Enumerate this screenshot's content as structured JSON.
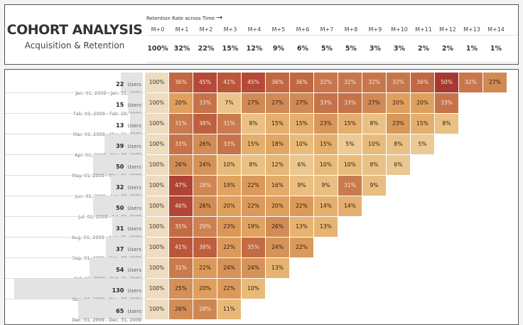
{
  "header": {
    "title": "COHORT ANALYSIS",
    "subtitle": "Acquisition & Retention",
    "caption": "Retention Rate across Time",
    "arrow": "→"
  },
  "chart_data": {
    "type": "heatmap",
    "columns": [
      "M+0",
      "M+1",
      "M+2",
      "M+3",
      "M+4",
      "M+5",
      "M+6",
      "M+7",
      "M+8",
      "M+9",
      "M+10",
      "M+11",
      "M+12",
      "M+13",
      "M+14"
    ],
    "overall": [
      "100%",
      "32%",
      "22%",
      "15%",
      "12%",
      "9%",
      "6%",
      "5%",
      "5%",
      "3%",
      "3%",
      "2%",
      "2%",
      "1%",
      "1%"
    ],
    "users_unit": "Users",
    "cohorts": [
      {
        "users": "22",
        "range": "Jan. 01, 2009 - Jan. 31, 2009",
        "values": [
          100,
          36,
          45,
          41,
          45,
          36,
          36,
          32,
          32,
          32,
          32,
          36,
          50,
          32,
          27
        ]
      },
      {
        "users": "15",
        "range": "Feb. 01, 2009 - Feb. 28, 2009",
        "values": [
          100,
          20,
          33,
          7,
          27,
          27,
          27,
          33,
          33,
          27,
          20,
          20,
          33
        ]
      },
      {
        "users": "13",
        "range": "Mar. 01, 2009 - Mar. 31, 2009",
        "values": [
          100,
          31,
          38,
          31,
          8,
          15,
          15,
          23,
          15,
          8,
          23,
          15,
          8
        ]
      },
      {
        "users": "39",
        "range": "Apr. 01, 2009 - Apr. 30, 2009",
        "values": [
          100,
          33,
          26,
          33,
          15,
          18,
          10,
          15,
          5,
          10,
          8,
          5
        ]
      },
      {
        "users": "50",
        "range": "May. 01, 2009 - May. 31, 2009",
        "values": [
          100,
          26,
          24,
          10,
          8,
          12,
          6,
          10,
          10,
          8,
          6
        ]
      },
      {
        "users": "32",
        "range": "Jun. 01, 2009 - Jun. 30, 2009",
        "values": [
          100,
          47,
          28,
          19,
          22,
          16,
          9,
          9,
          31,
          9
        ]
      },
      {
        "users": "50",
        "range": "Jul. 01, 2009 - Jul. 31, 2009",
        "values": [
          100,
          46,
          26,
          20,
          22,
          20,
          22,
          14,
          14
        ]
      },
      {
        "users": "31",
        "range": "Aug. 01, 2009 - Aug. 31, 2009",
        "values": [
          100,
          35,
          29,
          23,
          19,
          26,
          13,
          13
        ]
      },
      {
        "users": "37",
        "range": "Sep. 01, 2009 - Sep. 30, 2009",
        "values": [
          100,
          41,
          38,
          22,
          35,
          24,
          22
        ]
      },
      {
        "users": "54",
        "range": "Oct. 01, 2009 - Oct. 31, 2009",
        "values": [
          100,
          31,
          22,
          24,
          24,
          13
        ]
      },
      {
        "users": "130",
        "range": "Nov. 01, 2009 - Nov. 30, 2009",
        "values": [
          100,
          25,
          20,
          22,
          10
        ]
      },
      {
        "users": "65",
        "range": "Dec. 01, 2009 - Dec. 31, 2009",
        "values": [
          100,
          26,
          28,
          11
        ]
      }
    ],
    "color_scale": {
      "low": "#ecca96",
      "high": "#a63a33",
      "base": "#eedcc0"
    }
  }
}
